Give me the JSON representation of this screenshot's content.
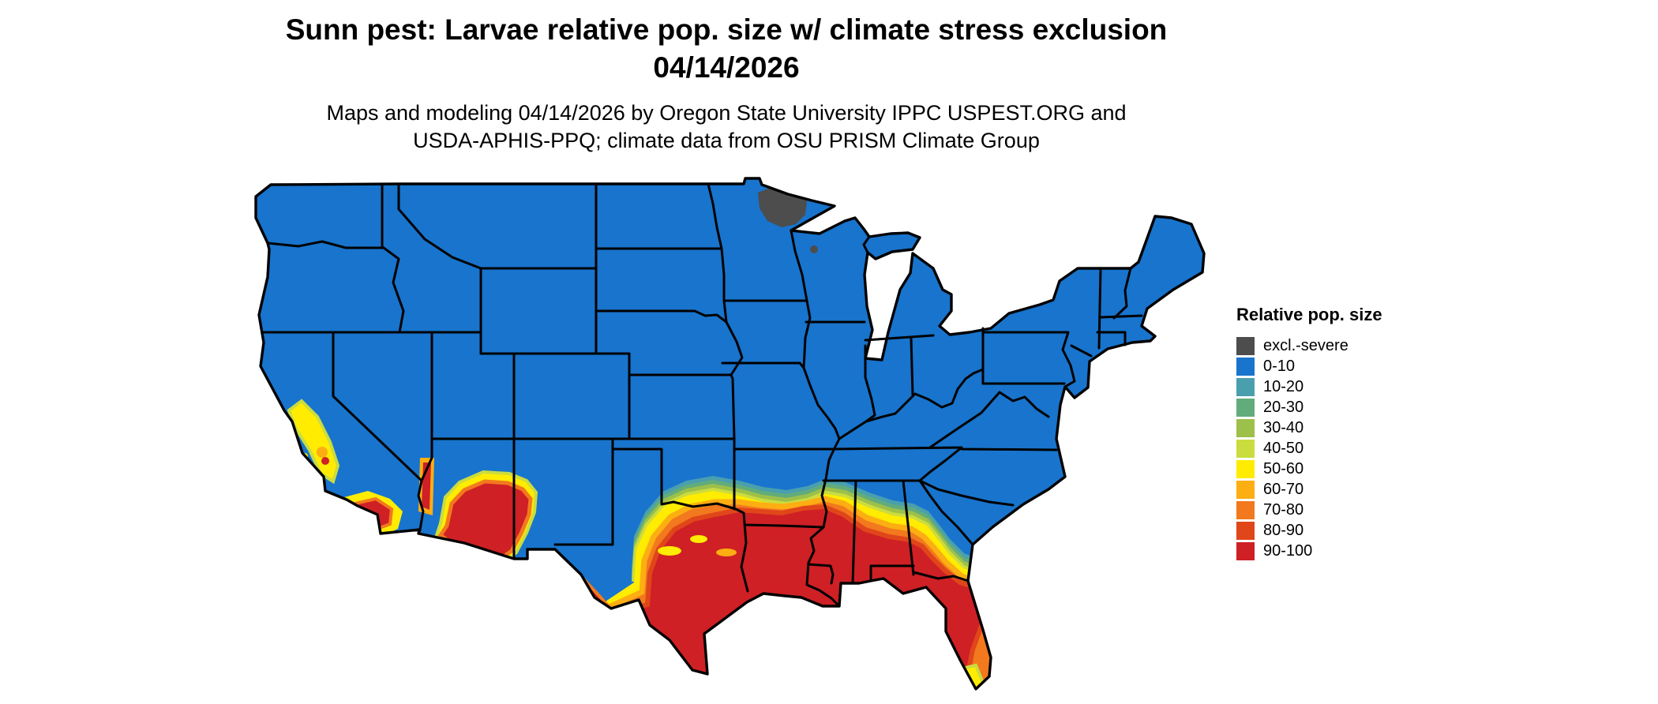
{
  "header": {
    "title_line1": "Sunn pest: Larvae relative pop. size w/ climate stress exclusion",
    "title_line2": "04/14/2026",
    "subtitle_line1": "Maps and modeling 04/14/2026 by Oregon State University IPPC USPEST.ORG and",
    "subtitle_line2": "USDA-APHIS-PPQ; climate data from OSU PRISM Climate Group"
  },
  "legend": {
    "title": "Relative pop. size",
    "items": [
      {
        "label": "excl.-severe",
        "key": "excl"
      },
      {
        "label": "0-10",
        "key": "p0_10"
      },
      {
        "label": "10-20",
        "key": "p10_20"
      },
      {
        "label": "20-30",
        "key": "p20_30"
      },
      {
        "label": "30-40",
        "key": "p30_40"
      },
      {
        "label": "40-50",
        "key": "p40_50"
      },
      {
        "label": "50-60",
        "key": "p50_60"
      },
      {
        "label": "60-70",
        "key": "p60_70"
      },
      {
        "label": "70-80",
        "key": "p70_80"
      },
      {
        "label": "80-90",
        "key": "p80_90"
      },
      {
        "label": "90-100",
        "key": "p90_100"
      }
    ]
  },
  "palette": {
    "excl": "#4D4D4D",
    "p0_10": "#1874CD",
    "p10_20": "#4A9FAE",
    "p20_30": "#62AC7C",
    "p30_40": "#9DC04A",
    "p40_50": "#CBDC3F",
    "p50_60": "#FFEC00",
    "p60_70": "#FCAE12",
    "p70_80": "#F2791D",
    "p80_90": "#E0461A",
    "p90_100": "#CE2025",
    "border": "#000000",
    "background": "#FFFFFF"
  }
}
